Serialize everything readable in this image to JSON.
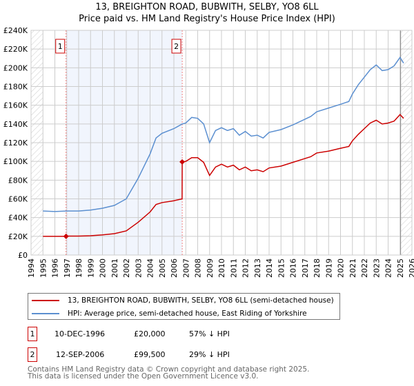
{
  "chart_data": {
    "type": "line",
    "title": "13, BREIGHTON ROAD, BUBWITH, SELBY, YO8 6LL",
    "subtitle": "Price paid vs. HM Land Registry's House Price Index (HPI)",
    "xlim": [
      1994,
      2026
    ],
    "ylim": [
      0,
      240000
    ],
    "x_ticks": [
      "1994",
      "1995",
      "1996",
      "1997",
      "1998",
      "1999",
      "2000",
      "2001",
      "2002",
      "2003",
      "2004",
      "2005",
      "2006",
      "2007",
      "2008",
      "2009",
      "2010",
      "2011",
      "2012",
      "2013",
      "2014",
      "2015",
      "2016",
      "2017",
      "2018",
      "2019",
      "2020",
      "2021",
      "2022",
      "2023",
      "2024",
      "2025",
      "2026"
    ],
    "y_ticks": [
      {
        "v": 0,
        "l": "£0"
      },
      {
        "v": 20000,
        "l": "£20K"
      },
      {
        "v": 40000,
        "l": "£40K"
      },
      {
        "v": 60000,
        "l": "£60K"
      },
      {
        "v": 80000,
        "l": "£80K"
      },
      {
        "v": 100000,
        "l": "£100K"
      },
      {
        "v": 120000,
        "l": "£120K"
      },
      {
        "v": 140000,
        "l": "£140K"
      },
      {
        "v": 160000,
        "l": "£160K"
      },
      {
        "v": 180000,
        "l": "£180K"
      },
      {
        "v": 200000,
        "l": "£200K"
      },
      {
        "v": 220000,
        "l": "£220K"
      },
      {
        "v": 240000,
        "l": "£240K"
      }
    ],
    "grid": true,
    "series": [
      {
        "name": "13, BREIGHTON ROAD, BUBWITH, SELBY, YO8 6LL (semi-detached house)",
        "color": "#cc0000",
        "x": [
          1995,
          1996.94,
          1997,
          1998,
          1999,
          2000,
          2001,
          2002,
          2003,
          2004,
          2004.5,
          2005,
          2006,
          2006.69,
          2006.7,
          2007,
          2007.5,
          2008,
          2008.5,
          2009,
          2009.5,
          2010,
          2010.5,
          2011,
          2011.5,
          2012,
          2012.5,
          2013,
          2013.5,
          2014,
          2015,
          2016,
          2017,
          2017.5,
          2018,
          2019,
          2020,
          2020.7,
          2021,
          2021.5,
          2022,
          2022.5,
          2023,
          2023.5,
          2024,
          2024.5,
          2025,
          2025.3
        ],
        "y": [
          20000,
          20000,
          20200,
          20200,
          20600,
          21500,
          22800,
          25800,
          35000,
          46000,
          54000,
          56000,
          58000,
          60000,
          99500,
          100000,
          104000,
          104000,
          99000,
          85000,
          94000,
          97000,
          94000,
          96000,
          91000,
          94000,
          90000,
          91000,
          89000,
          93000,
          95000,
          99000,
          103000,
          105000,
          109000,
          111000,
          114000,
          116000,
          122000,
          129000,
          135000,
          141000,
          144000,
          140000,
          141000,
          143000,
          150000,
          146000
        ]
      },
      {
        "name": "HPI: Average price, semi-detached house, East Riding of Yorkshire",
        "color": "#5b8fd0",
        "x": [
          1995,
          1996,
          1997,
          1998,
          1999,
          2000,
          2001,
          2002,
          2003,
          2004,
          2004.5,
          2005,
          2006,
          2006.7,
          2007,
          2007.5,
          2008,
          2008.5,
          2009,
          2009.5,
          2010,
          2010.5,
          2011,
          2011.5,
          2012,
          2012.5,
          2013,
          2013.5,
          2014,
          2015,
          2016,
          2017,
          2017.5,
          2018,
          2019,
          2020,
          2020.7,
          2021,
          2021.5,
          2022,
          2022.5,
          2023,
          2023.5,
          2024,
          2024.5,
          2025,
          2025.3
        ],
        "y": [
          47000,
          46500,
          47000,
          47000,
          48000,
          50000,
          53000,
          60000,
          82000,
          108000,
          125000,
          130000,
          135000,
          140000,
          141000,
          147000,
          146000,
          140000,
          120000,
          133000,
          136000,
          133000,
          135000,
          128000,
          132000,
          127000,
          128000,
          125000,
          131000,
          134000,
          139000,
          145000,
          148000,
          153000,
          157000,
          161000,
          164000,
          172000,
          182000,
          190000,
          198000,
          203000,
          197000,
          198000,
          202000,
          211000,
          205000
        ]
      }
    ],
    "sales": [
      {
        "label": "1",
        "date": "10-DEC-1996",
        "x": 1996.94,
        "price": "£20,000",
        "value": 20000,
        "hpi": "57% ↓ HPI"
      },
      {
        "label": "2",
        "date": "12-SEP-2006",
        "x": 2006.7,
        "price": "£99,500",
        "value": 99500,
        "hpi": "29% ↓ HPI"
      }
    ]
  },
  "footer": {
    "line1": "Contains HM Land Registry data © Crown copyright and database right 2025.",
    "line2": "This data is licensed under the Open Government Licence v3.0."
  }
}
